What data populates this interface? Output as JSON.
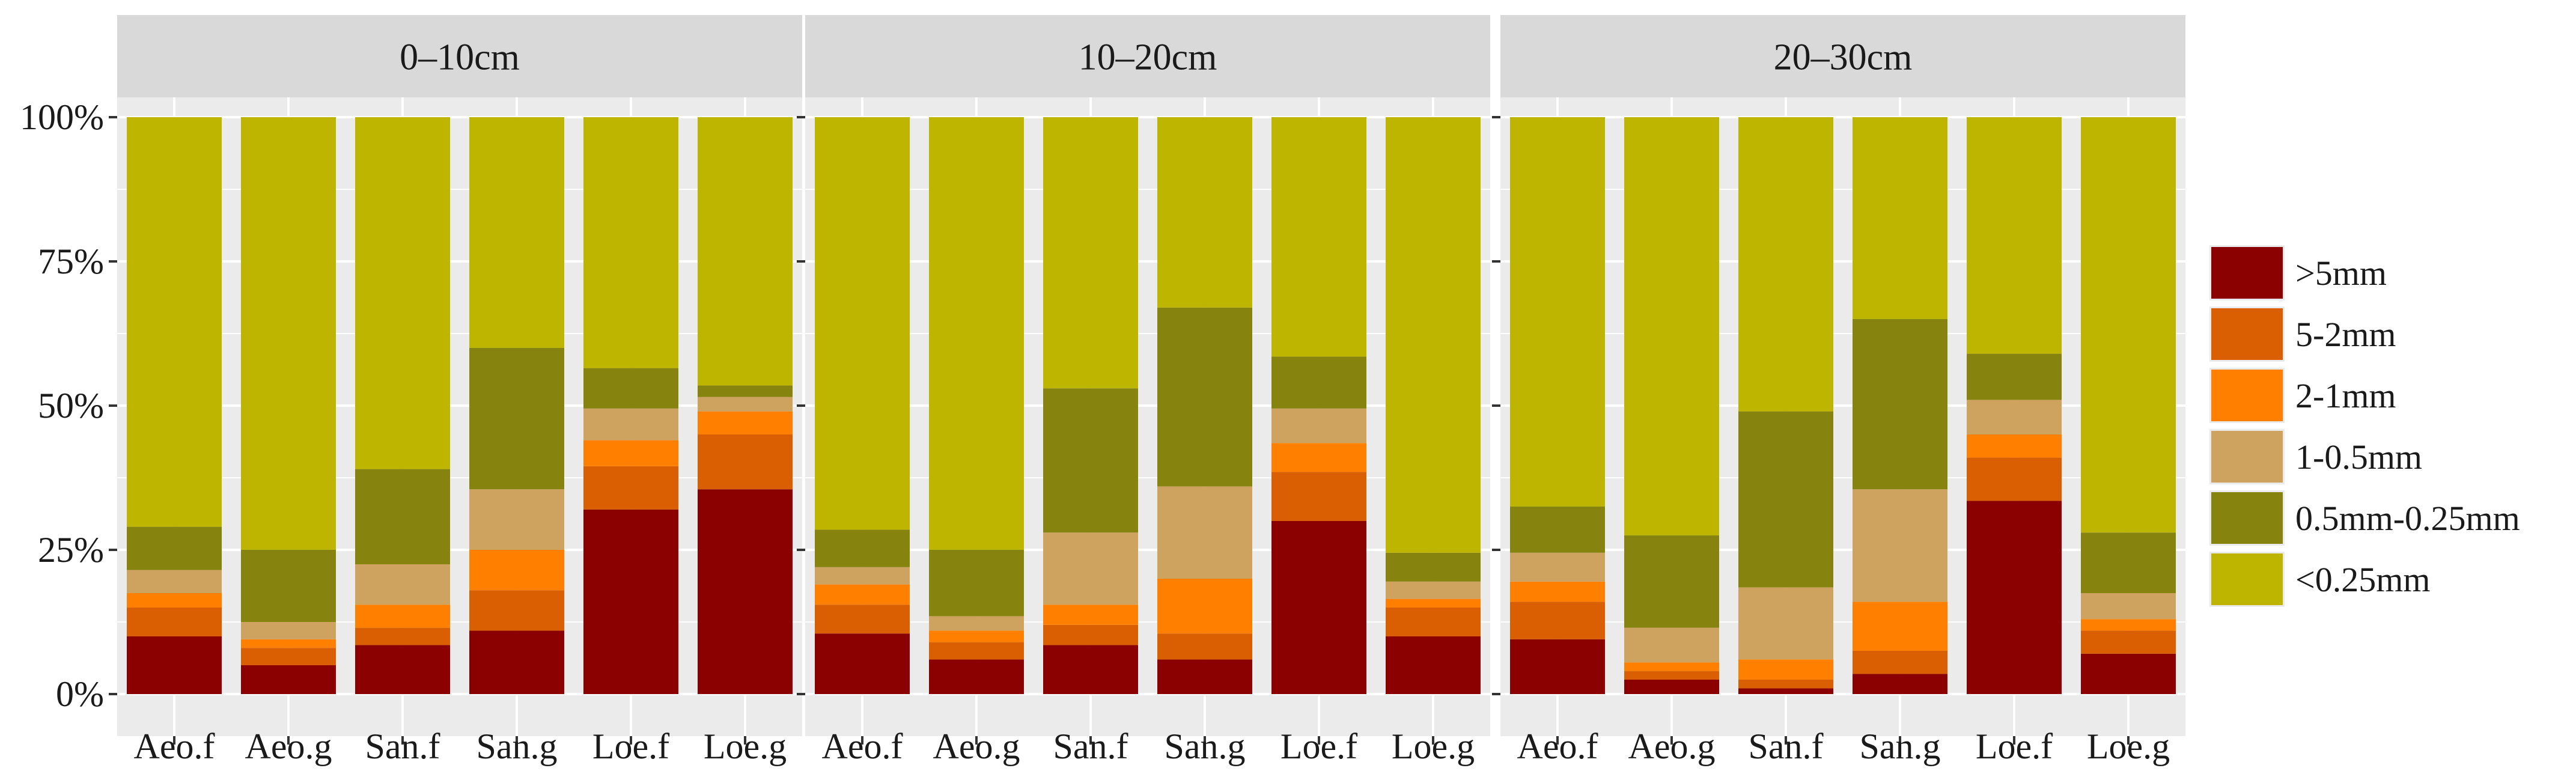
{
  "chart_data": {
    "type": "bar",
    "stacked": true,
    "percent": true,
    "facets": [
      "0–10cm",
      "10–20cm",
      "20–30cm"
    ],
    "categories": [
      "Aeo.f",
      "Aeo.g",
      "San.f",
      "San.g",
      "Loe.f",
      "Loe.g"
    ],
    "y_ticks": [
      "0%",
      "25%",
      "50%",
      "75%",
      "100%"
    ],
    "ylim": [
      0,
      100
    ],
    "legend_position": "right",
    "series": [
      {
        "name": ">5mm",
        "color": "#8B0000",
        "values": [
          [
            10,
            5,
            8.5,
            11,
            32,
            35.5
          ],
          [
            10.5,
            6,
            8.5,
            6,
            30,
            10
          ],
          [
            9.5,
            2.5,
            1,
            3.5,
            33.5,
            7
          ]
        ]
      },
      {
        "name": "5-2mm",
        "color": "#DA5F02",
        "values": [
          [
            5,
            3,
            3,
            7,
            7.5,
            9.5
          ],
          [
            5,
            3,
            3.5,
            4.5,
            8.5,
            5
          ],
          [
            6.5,
            1.5,
            1.5,
            4,
            7.5,
            4
          ]
        ]
      },
      {
        "name": "2-1mm",
        "color": "#FF8000",
        "values": [
          [
            2.5,
            1.5,
            4,
            7,
            4.5,
            4
          ],
          [
            3.5,
            2,
            3.5,
            9.5,
            5,
            1.5
          ],
          [
            3.5,
            1.5,
            3.5,
            8.5,
            4,
            2
          ]
        ]
      },
      {
        "name": "1-0.5mm",
        "color": "#CDA35F",
        "values": [
          [
            4,
            3,
            7,
            10.5,
            5.5,
            2.5
          ],
          [
            3,
            2.5,
            12.5,
            16,
            6,
            3
          ],
          [
            5,
            6,
            12.5,
            19.5,
            6,
            4.5
          ]
        ]
      },
      {
        "name": "0.5mm-0.25mm",
        "color": "#86830F",
        "values": [
          [
            7.5,
            12.5,
            16.5,
            24.5,
            7,
            2
          ],
          [
            6.5,
            11.5,
            25,
            31,
            9,
            5
          ],
          [
            8,
            16,
            30.5,
            29.5,
            8,
            10.5
          ]
        ]
      },
      {
        "name": "<0.25mm",
        "color": "#BDB500",
        "values": [
          [
            71,
            75,
            61,
            40,
            43.5,
            46.5
          ],
          [
            71.5,
            75,
            47,
            33,
            41.5,
            75.5
          ],
          [
            67.5,
            72.5,
            51,
            35,
            41,
            72
          ]
        ]
      }
    ]
  }
}
